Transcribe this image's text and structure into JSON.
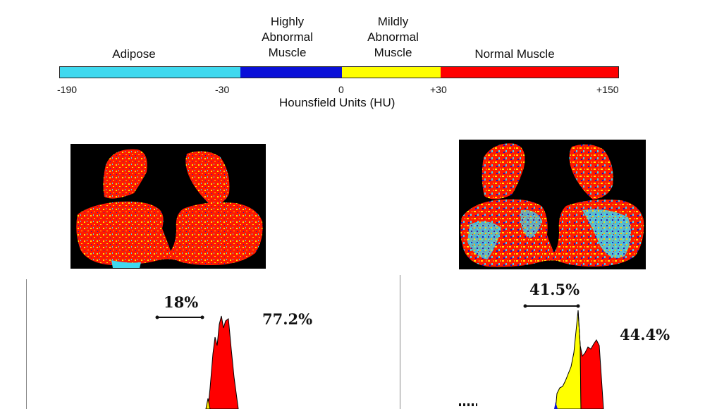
{
  "legend": {
    "categories": [
      {
        "label": "Adipose",
        "color": "#3fd9ef"
      },
      {
        "label": "Highly\nAbnormal\nMuscle",
        "color": "#0a10d8"
      },
      {
        "label": "Mildly\nAbnormal\nMuscle",
        "color": "#ffff00"
      },
      {
        "label": "Normal Muscle",
        "color": "#ff0000"
      }
    ],
    "ticks": [
      "-190",
      "-30",
      "0",
      "+30",
      "+150"
    ],
    "axis_title": "Hounsfield Units (HU)"
  },
  "left_panel": {
    "bracket_label": "18%",
    "peak_label": "77.2%"
  },
  "right_panel": {
    "bracket_label": "41.5%",
    "peak_label": "44.4%"
  }
}
